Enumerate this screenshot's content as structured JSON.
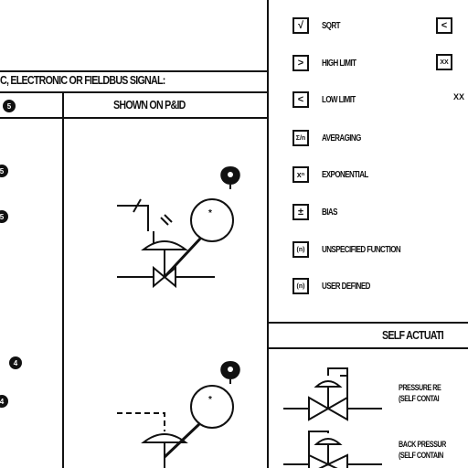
{
  "left_panel": {
    "heading": "C, ELECTRONIC OR FIELDBUS SIGNAL:",
    "shown_on_pid": "SHOWN ON P&ID",
    "markers": [
      "5",
      "5",
      "5",
      "4",
      "4",
      "5",
      "5"
    ],
    "instrument_tag_top": "*",
    "instrument_tag_bottom": "*"
  },
  "functions": {
    "items": [
      {
        "symbol": "√",
        "label": "SQRT"
      },
      {
        "symbol": ">",
        "label": "HIGH LIMIT"
      },
      {
        "symbol": "<",
        "label": "LOW LIMIT"
      },
      {
        "symbol": "Σ/n",
        "label": "AVERAGING"
      },
      {
        "symbol": "xⁿ",
        "label": "EXPONENTIAL"
      },
      {
        "symbol": "±",
        "label": "BIAS"
      },
      {
        "symbol": "(n)",
        "label": "UNSPECIFIED FUNCTION"
      },
      {
        "symbol": "(n)",
        "label": "USER DEFINED"
      }
    ],
    "right_column": [
      {
        "symbol": "<"
      },
      {
        "symbol": "XX"
      }
    ],
    "right_text": "XX"
  },
  "self_actuated": {
    "heading": "SELF ACTUATI",
    "items": [
      {
        "line1": "PRESSURE RE",
        "line2": "(SELF CONTAI"
      },
      {
        "line1": "BACK PRESSUR",
        "line2": "(SELF CONTAIN"
      }
    ]
  }
}
